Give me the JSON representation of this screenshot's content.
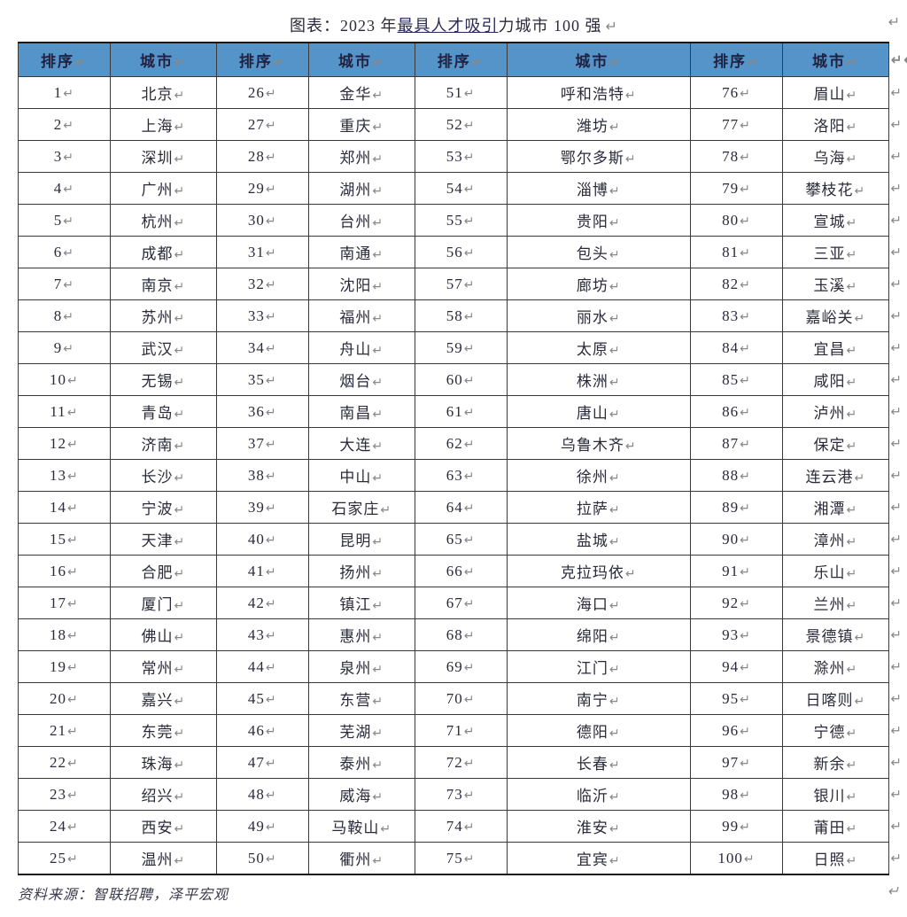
{
  "title": {
    "prefix": "图表：2023 年",
    "underlined": "最具人才吸引",
    "suffix": "力城市 100 强"
  },
  "paragraph_mark": "↵",
  "row_end_mark": "↵",
  "dbl_arrow": "↵↵",
  "headers": [
    "排序",
    "城市",
    "排序",
    "城市",
    "排序",
    "城市",
    "排序",
    "城市"
  ],
  "col_classes": [
    "col-rank",
    "col-city-narrow",
    "col-rank",
    "col-city-narrow",
    "col-rank",
    "col-city-wide",
    "col-rank",
    "col-city-narrow"
  ],
  "rows": [
    [
      "1",
      "北京",
      "26",
      "金华",
      "51",
      "呼和浩特",
      "76",
      "眉山"
    ],
    [
      "2",
      "上海",
      "27",
      "重庆",
      "52",
      "潍坊",
      "77",
      "洛阳"
    ],
    [
      "3",
      "深圳",
      "28",
      "郑州",
      "53",
      "鄂尔多斯",
      "78",
      "乌海"
    ],
    [
      "4",
      "广州",
      "29",
      "湖州",
      "54",
      "淄博",
      "79",
      "攀枝花"
    ],
    [
      "5",
      "杭州",
      "30",
      "台州",
      "55",
      "贵阳",
      "80",
      "宣城"
    ],
    [
      "6",
      "成都",
      "31",
      "南通",
      "56",
      "包头",
      "81",
      "三亚"
    ],
    [
      "7",
      "南京",
      "32",
      "沈阳",
      "57",
      "廊坊",
      "82",
      "玉溪"
    ],
    [
      "8",
      "苏州",
      "33",
      "福州",
      "58",
      "丽水",
      "83",
      "嘉峪关"
    ],
    [
      "9",
      "武汉",
      "34",
      "舟山",
      "59",
      "太原",
      "84",
      "宜昌"
    ],
    [
      "10",
      "无锡",
      "35",
      "烟台",
      "60",
      "株洲",
      "85",
      "咸阳"
    ],
    [
      "11",
      "青岛",
      "36",
      "南昌",
      "61",
      "唐山",
      "86",
      "泸州"
    ],
    [
      "12",
      "济南",
      "37",
      "大连",
      "62",
      "乌鲁木齐",
      "87",
      "保定"
    ],
    [
      "13",
      "长沙",
      "38",
      "中山",
      "63",
      "徐州",
      "88",
      "连云港"
    ],
    [
      "14",
      "宁波",
      "39",
      "石家庄",
      "64",
      "拉萨",
      "89",
      "湘潭"
    ],
    [
      "15",
      "天津",
      "40",
      "昆明",
      "65",
      "盐城",
      "90",
      "漳州"
    ],
    [
      "16",
      "合肥",
      "41",
      "扬州",
      "66",
      "克拉玛依",
      "91",
      "乐山"
    ],
    [
      "17",
      "厦门",
      "42",
      "镇江",
      "67",
      "海口",
      "92",
      "兰州"
    ],
    [
      "18",
      "佛山",
      "43",
      "惠州",
      "68",
      "绵阳",
      "93",
      "景德镇"
    ],
    [
      "19",
      "常州",
      "44",
      "泉州",
      "69",
      "江门",
      "94",
      "滁州"
    ],
    [
      "20",
      "嘉兴",
      "45",
      "东营",
      "70",
      "南宁",
      "95",
      "日喀则"
    ],
    [
      "21",
      "东莞",
      "46",
      "芜湖",
      "71",
      "德阳",
      "96",
      "宁德"
    ],
    [
      "22",
      "珠海",
      "47",
      "泰州",
      "72",
      "长春",
      "97",
      "新余"
    ],
    [
      "23",
      "绍兴",
      "48",
      "威海",
      "73",
      "临沂",
      "98",
      "银川"
    ],
    [
      "24",
      "西安",
      "49",
      "马鞍山",
      "74",
      "淮安",
      "99",
      "莆田"
    ],
    [
      "25",
      "温州",
      "50",
      "衢州",
      "75",
      "宜宾",
      "100",
      "日照"
    ]
  ],
  "source": "资料来源：智联招聘，泽平宏观",
  "style": {
    "header_bg": "#5494c8",
    "border_color": "#3a3a3a",
    "text_color": "#2a2a3a",
    "title_fontsize": 18,
    "cell_fontsize": 17
  }
}
